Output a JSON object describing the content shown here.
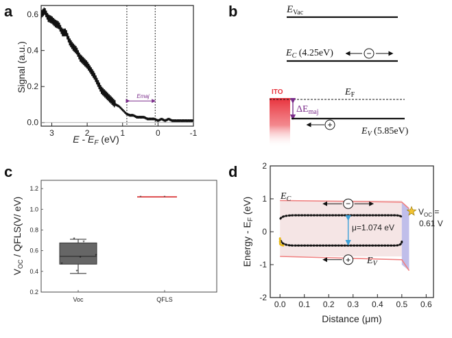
{
  "figure": {
    "panels": {
      "a": "a",
      "b": "b",
      "c": "c",
      "d": "d"
    }
  },
  "chart_data": [
    {
      "type": "line",
      "panel": "a",
      "xlabel": "E - E",
      "xlabel_sub": "F",
      "xlabel_unit": " (eV)",
      "ylabel": "Signal (a.u.)",
      "xlim": [
        3.3,
        -1
      ],
      "ylim": [
        -0.02,
        0.65
      ],
      "x_ticks": [
        "3",
        "2",
        "1",
        "0",
        "-1"
      ],
      "x_tick_values": [
        3,
        2,
        1,
        0,
        -1
      ],
      "y_ticks": [
        "0.0",
        "0.2",
        "0.4",
        "0.6"
      ],
      "y_tick_values": [
        0,
        0.2,
        0.4,
        0.6
      ],
      "vlines": [
        0.88,
        0.08
      ],
      "annotation": "Emaj",
      "annotation_arrow": [
        0.85,
        0.12
      ],
      "annotation_y": 0.12,
      "x": [
        3.3,
        3.2,
        3.1,
        3.0,
        2.9,
        2.8,
        2.7,
        2.6,
        2.5,
        2.4,
        2.3,
        2.2,
        2.1,
        2.0,
        1.9,
        1.8,
        1.7,
        1.6,
        1.5,
        1.4,
        1.3,
        1.2,
        1.1,
        1.0,
        0.9,
        0.8,
        0.7,
        0.6,
        0.5,
        0.4,
        0.3,
        0.2,
        0.1,
        0.0,
        -0.1,
        -0.2,
        -0.3,
        -0.4,
        -0.5,
        -0.6,
        -0.7,
        -0.8,
        -0.9,
        -1.0
      ],
      "y": [
        0.6,
        0.62,
        0.58,
        0.57,
        0.55,
        0.54,
        0.5,
        0.5,
        0.45,
        0.42,
        0.4,
        0.36,
        0.34,
        0.32,
        0.29,
        0.26,
        0.22,
        0.18,
        0.16,
        0.14,
        0.12,
        0.1,
        0.09,
        0.07,
        0.05,
        0.04,
        0.04,
        0.03,
        0.03,
        0.03,
        0.02,
        0.02,
        0.02,
        0.01,
        0.02,
        0.01,
        0.02,
        0.01,
        0.01,
        0.01,
        0.01,
        0.01,
        0.01,
        0.01
      ]
    },
    {
      "type": "box",
      "panel": "c",
      "ylabel_main": "V",
      "ylabel_sub": "OC",
      "ylabel_rest": " / QFLS(V/ eV)",
      "categories": [
        "Voc",
        "QFLS"
      ],
      "ylim": [
        0.2,
        1.28
      ],
      "y_ticks": [
        "0.2",
        "0.4",
        "0.6",
        "0.8",
        "1.0",
        "1.2"
      ],
      "y_tick_values": [
        0.2,
        0.4,
        0.6,
        0.8,
        1.0,
        1.2
      ],
      "voc_box": {
        "whisker_low": 0.38,
        "q1": 0.47,
        "median": 0.545,
        "q3": 0.675,
        "whisker_high": 0.71
      },
      "voc_points": [
        0.4,
        0.47,
        0.53,
        0.55,
        0.68,
        0.71
      ],
      "qfls_value": 1.12,
      "qfls_points": [
        1.12,
        1.12
      ],
      "box_color": "#666666",
      "qfls_color": "#d62728"
    },
    {
      "type": "line",
      "panel": "d",
      "xlabel": "Distance (μm)",
      "ylabel": "Energy - E",
      "ylabel_sub": "F",
      "ylabel_unit": " (eV)",
      "xlim": [
        -0.04,
        0.63
      ],
      "ylim": [
        -2,
        2
      ],
      "x_ticks": [
        "0.0",
        "0.1",
        "0.2",
        "0.3",
        "0.4",
        "0.5",
        "0.6"
      ],
      "x_tick_values": [
        0,
        0.1,
        0.2,
        0.3,
        0.4,
        0.5,
        0.6
      ],
      "y_ticks": [
        "2",
        "1",
        "0",
        "-1",
        "-2"
      ],
      "y_tick_values": [
        2,
        1,
        0,
        -1,
        -2
      ],
      "ec_value": 0.95,
      "ev_value": -0.75,
      "efn_value": 0.5,
      "efp_value": -0.42,
      "mu_label": "μ=1.074 eV",
      "voc_label_main": "V",
      "voc_label_sub": "OC",
      "voc_label_eq": " =",
      "voc_label_value": "0.61 V",
      "ec_label": "E",
      "ec_label_sub": "C",
      "ev_label": "E",
      "ev_label_sub": "V",
      "colors": {
        "band": "#f08080",
        "fill": "#f2dede",
        "contact": "#b5b3e6",
        "arrow": "#3aa0d8",
        "star": "#f2c230",
        "yellow": "#e8b818"
      }
    }
  ],
  "diagram_b": {
    "evac_main": "E",
    "evac_sub": "Vac",
    "ec_main": "E",
    "ec_sub": "C",
    "ec_value": " (4.25eV)",
    "ef_main": "E",
    "ef_sub": "F",
    "delta_main": "ΔE",
    "delta_sub": "maj",
    "ev_main": "E",
    "ev_sub": "V",
    "ev_value": " (5.85eV)",
    "ito": "ITO",
    "electron_symbol": "−",
    "hole_symbol": "+",
    "colors": {
      "ito": "#e8323c",
      "delta_arrow": "#7b2d8b"
    }
  }
}
